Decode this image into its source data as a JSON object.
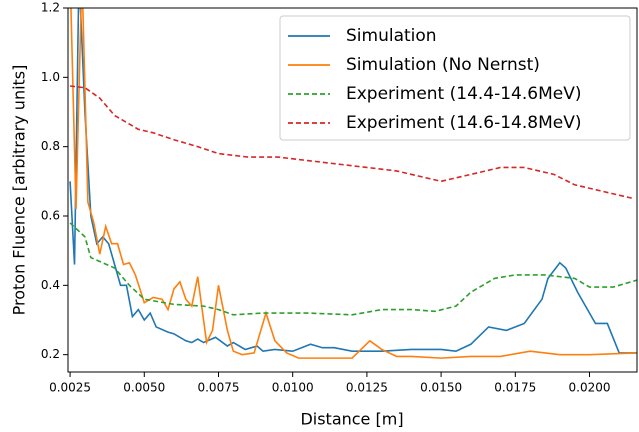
{
  "chart_data": {
    "type": "line",
    "xlabel": "Distance [m]",
    "ylabel": "Proton Fluence [arbitrary units]",
    "xlim": [
      0.00243,
      0.0216
    ],
    "ylim": [
      0.15,
      1.2
    ],
    "xticks": [
      0.0025,
      {
        "value": 0.005,
        "label": "0.0050"
      },
      {
        "value": 0.0075,
        "label": "0.0075"
      },
      {
        "value": 0.01,
        "label": "0.0100"
      },
      {
        "value": 0.0125,
        "label": "0.0125"
      },
      {
        "value": 0.015,
        "label": "0.0150"
      },
      {
        "value": 0.0175,
        "label": "0.0175"
      },
      {
        "value": 0.02,
        "label": "0.0200"
      }
    ],
    "yticks": [
      0.2,
      0.4,
      0.6,
      0.8,
      {
        "value": 1.0,
        "label": "1.0"
      },
      1.2
    ],
    "legend": "upper right",
    "series": [
      {
        "name": "Simulation",
        "color": "#1f77b4",
        "style": "solid",
        "x": [
          0.0025,
          0.00265,
          0.0028,
          0.003,
          0.0032,
          0.0034,
          0.0036,
          0.0038,
          0.004,
          0.0042,
          0.0044,
          0.0046,
          0.0048,
          0.005,
          0.0052,
          0.0054,
          0.0058,
          0.006,
          0.0064,
          0.0066,
          0.0068,
          0.007,
          0.0074,
          0.0078,
          0.008,
          0.0084,
          0.0088,
          0.009,
          0.0094,
          0.01,
          0.0106,
          0.011,
          0.0114,
          0.012,
          0.013,
          0.014,
          0.015,
          0.0155,
          0.016,
          0.0166,
          0.0172,
          0.0178,
          0.0184,
          0.0186,
          0.019,
          0.0192,
          0.0196,
          0.0202,
          0.0206,
          0.021,
          0.0216
        ],
        "values": [
          0.7,
          0.46,
          1.3,
          0.9,
          0.6,
          0.52,
          0.54,
          0.52,
          0.46,
          0.4,
          0.4,
          0.31,
          0.33,
          0.3,
          0.32,
          0.28,
          0.265,
          0.26,
          0.24,
          0.235,
          0.245,
          0.235,
          0.25,
          0.225,
          0.235,
          0.215,
          0.225,
          0.21,
          0.215,
          0.21,
          0.23,
          0.22,
          0.22,
          0.21,
          0.21,
          0.215,
          0.215,
          0.21,
          0.23,
          0.28,
          0.27,
          0.29,
          0.36,
          0.42,
          0.465,
          0.45,
          0.38,
          0.29,
          0.29,
          0.205,
          0.205
        ]
      },
      {
        "name": "Simulation (No Nernst)",
        "color": "#ff7f0e",
        "style": "solid",
        "x": [
          0.0025,
          0.0027,
          0.0029,
          0.0031,
          0.0033,
          0.0035,
          0.0037,
          0.0039,
          0.0041,
          0.0043,
          0.0045,
          0.0047,
          0.005,
          0.0053,
          0.0056,
          0.0058,
          0.006,
          0.0062,
          0.0064,
          0.0066,
          0.0068,
          0.0071,
          0.0073,
          0.0075,
          0.0078,
          0.008,
          0.0083,
          0.0087,
          0.0091,
          0.0094,
          0.0098,
          0.0102,
          0.011,
          0.012,
          0.0126,
          0.013,
          0.0135,
          0.014,
          0.015,
          0.016,
          0.017,
          0.018,
          0.019,
          0.02,
          0.0216
        ],
        "values": [
          1.3,
          0.62,
          1.3,
          0.64,
          0.58,
          0.49,
          0.57,
          0.52,
          0.52,
          0.46,
          0.465,
          0.43,
          0.35,
          0.365,
          0.36,
          0.33,
          0.39,
          0.41,
          0.36,
          0.34,
          0.425,
          0.235,
          0.27,
          0.4,
          0.27,
          0.21,
          0.2,
          0.205,
          0.32,
          0.24,
          0.205,
          0.19,
          0.19,
          0.19,
          0.24,
          0.215,
          0.195,
          0.195,
          0.19,
          0.195,
          0.195,
          0.21,
          0.2,
          0.2,
          0.205
        ]
      },
      {
        "name": "Experiment (14.4-14.6MeV)",
        "color": "#2ca02c",
        "style": "dashed",
        "x": [
          0.0025,
          0.003,
          0.0032,
          0.004,
          0.0045,
          0.005,
          0.006,
          0.007,
          0.0075,
          0.008,
          0.009,
          0.0105,
          0.012,
          0.013,
          0.014,
          0.0148,
          0.0155,
          0.016,
          0.0168,
          0.0175,
          0.0185,
          0.0195,
          0.02,
          0.0208,
          0.0216
        ],
        "values": [
          0.58,
          0.54,
          0.48,
          0.45,
          0.4,
          0.36,
          0.345,
          0.34,
          0.33,
          0.315,
          0.32,
          0.32,
          0.315,
          0.33,
          0.33,
          0.325,
          0.34,
          0.38,
          0.42,
          0.43,
          0.43,
          0.42,
          0.395,
          0.395,
          0.415
        ]
      },
      {
        "name": "Experiment (14.6-14.8MeV)",
        "color": "#d62728",
        "style": "dashed",
        "x": [
          0.0025,
          0.003,
          0.0035,
          0.004,
          0.0048,
          0.0053,
          0.006,
          0.0068,
          0.0075,
          0.0085,
          0.0095,
          0.0105,
          0.0115,
          0.0125,
          0.0135,
          0.0145,
          0.015,
          0.016,
          0.017,
          0.0178,
          0.0188,
          0.0195,
          0.0205,
          0.0215
        ],
        "values": [
          0.975,
          0.97,
          0.94,
          0.89,
          0.85,
          0.84,
          0.82,
          0.8,
          0.78,
          0.77,
          0.77,
          0.76,
          0.75,
          0.74,
          0.73,
          0.71,
          0.7,
          0.72,
          0.74,
          0.74,
          0.72,
          0.69,
          0.67,
          0.65
        ]
      }
    ]
  }
}
